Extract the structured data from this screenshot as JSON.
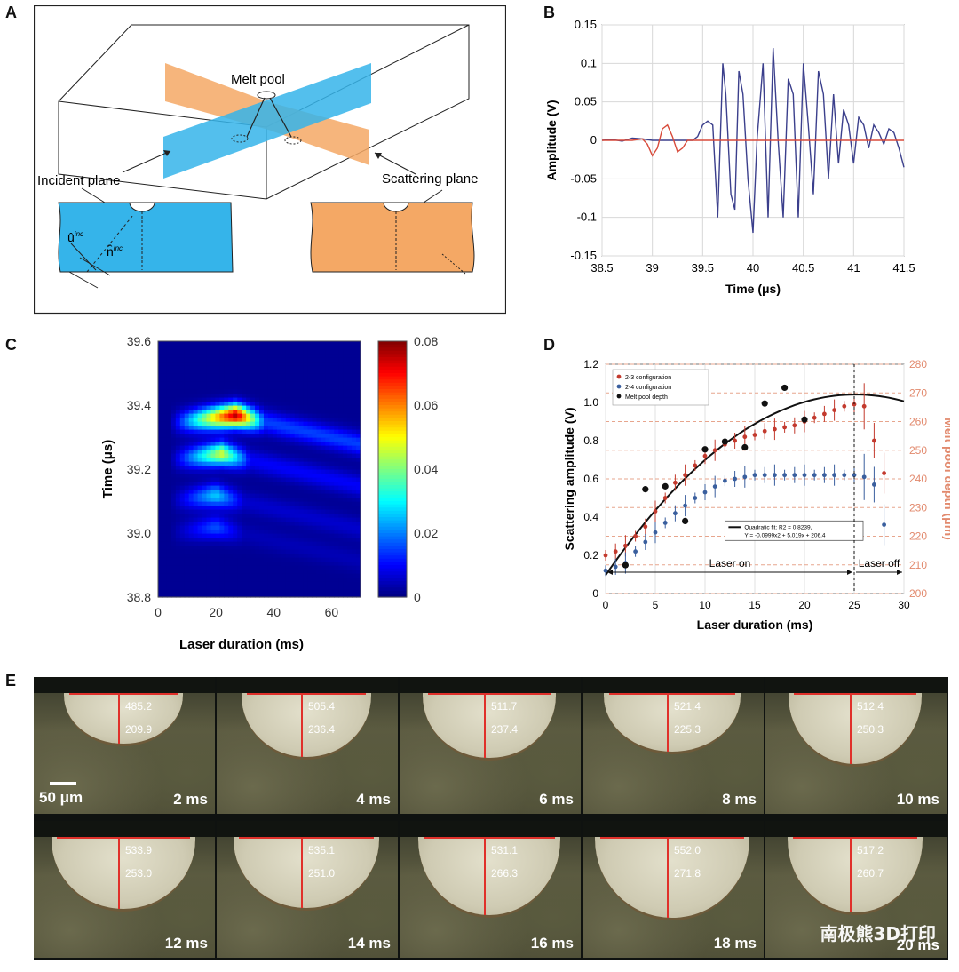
{
  "panels": {
    "a": {
      "letter": "A",
      "labels": {
        "melt_pool": "Melt pool",
        "incident_plane": "Incident plane",
        "scattering_plane": "Scattering plane",
        "u_inc": "û",
        "u_sup": "inc",
        "n_inc": "n̂",
        "n_sup": "inc"
      }
    },
    "b": {
      "letter": "B"
    },
    "c": {
      "letter": "C"
    },
    "d": {
      "letter": "D"
    },
    "e": {
      "letter": "E"
    }
  },
  "chart_data": [
    {
      "panel": "B",
      "type": "line",
      "xlabel": "Time (μs)",
      "ylabel": "Amplitude (V)",
      "xlim": [
        38.5,
        41.5
      ],
      "ylim": [
        -0.15,
        0.15
      ],
      "xticks": [
        "38.5",
        "39",
        "39.5",
        "40",
        "40.5",
        "41",
        "41.5"
      ],
      "yticks": [
        "0.15",
        "0.1",
        "0.05",
        "0",
        "-0.05",
        "-0.1",
        "-0.15"
      ],
      "grid": true,
      "series": [
        {
          "color": "#3b3f8c",
          "x": [
            38.5,
            38.6,
            38.7,
            38.8,
            38.9,
            39.0,
            39.1,
            39.2,
            39.3,
            39.4,
            39.45,
            39.5,
            39.55,
            39.6,
            39.65,
            39.7,
            39.73,
            39.78,
            39.82,
            39.86,
            39.9,
            39.95,
            40.0,
            40.04,
            40.1,
            40.15,
            40.2,
            40.25,
            40.3,
            40.35,
            40.4,
            40.45,
            40.5,
            40.55,
            40.6,
            40.65,
            40.7,
            40.75,
            40.8,
            40.85,
            40.9,
            40.95,
            41.0,
            41.05,
            41.1,
            41.15,
            41.2,
            41.25,
            41.3,
            41.35,
            41.4,
            41.45,
            41.5
          ],
          "values": [
            0,
            0.001,
            -0.001,
            0.003,
            0.002,
            0,
            0,
            0,
            0,
            0,
            0.005,
            0.02,
            0.025,
            0.02,
            -0.1,
            0.1,
            0.06,
            -0.07,
            -0.09,
            0.09,
            0.06,
            -0.05,
            -0.12,
            0.0,
            0.1,
            -0.1,
            0.12,
            0.0,
            -0.1,
            0.08,
            0.06,
            -0.1,
            0.1,
            0.02,
            -0.07,
            0.09,
            0.06,
            -0.05,
            0.06,
            -0.03,
            0.04,
            0.02,
            -0.03,
            0.03,
            0.02,
            -0.01,
            0.02,
            0.01,
            -0.005,
            0.015,
            0.01,
            -0.01,
            -0.035
          ]
        },
        {
          "color": "#d84a3a",
          "x": [
            38.5,
            38.8,
            38.9,
            38.95,
            39.0,
            39.05,
            39.1,
            39.15,
            39.2,
            39.25,
            39.3,
            39.35,
            39.4,
            39.5,
            40.0,
            41.5
          ],
          "values": [
            0,
            0,
            0.002,
            -0.005,
            -0.02,
            -0.01,
            0.015,
            0.02,
            0.005,
            -0.015,
            -0.01,
            0,
            0,
            0,
            0,
            0
          ]
        }
      ]
    },
    {
      "panel": "C",
      "type": "heatmap",
      "xlabel": "Laser duration (ms)",
      "ylabel": "Time (μs)",
      "xlim": [
        0,
        70
      ],
      "ylim": [
        38.8,
        39.6
      ],
      "xticks": [
        "0",
        "20",
        "40",
        "60"
      ],
      "yticks": [
        "39.6",
        "39.4",
        "39.2",
        "39.0",
        "38.8"
      ],
      "colorbar": {
        "min": 0,
        "max": 0.08,
        "ticks": [
          "0.08",
          "0.06",
          "0.04",
          "0.02",
          "0"
        ]
      },
      "bands": [
        {
          "center_us": 39.37,
          "peak_amplitude": 0.075,
          "peak_ms": 27
        },
        {
          "center_us": 39.25,
          "peak_amplitude": 0.045,
          "peak_ms": 22
        },
        {
          "center_us": 39.12,
          "peak_amplitude": 0.025,
          "peak_ms": 20
        },
        {
          "center_us": 39.02,
          "peak_amplitude": 0.015,
          "peak_ms": 20
        }
      ]
    },
    {
      "panel": "D",
      "type": "scatter",
      "xlabel": "Laser duration (ms)",
      "ylabel": "Scattering amplitude (V)",
      "y2label": "Melt pool depth (μm)",
      "xlim": [
        0,
        30
      ],
      "ylim": [
        0,
        1.2
      ],
      "y2lim": [
        200,
        280
      ],
      "xticks": [
        "0",
        "5",
        "10",
        "15",
        "20",
        "25",
        "30"
      ],
      "yticks": [
        "1.2",
        "1.0",
        "0.8",
        "0.6",
        "0.4",
        "0.2",
        "0"
      ],
      "y2ticks": [
        "280",
        "270",
        "260",
        "250",
        "240",
        "230",
        "220",
        "210",
        "200"
      ],
      "legend": [
        "2-3 configuration",
        "2-4 configuration",
        "Melt pool depth"
      ],
      "fit_text": [
        "Quadratic fit: R2 = 0.8239,",
        "Y = -0.0999x2 + 5.019x + 206.4"
      ],
      "region_labels": [
        "Laser on",
        "Laser off"
      ],
      "series": [
        {
          "name": "2-3 configuration",
          "color": "#c33a2e",
          "x": [
            0,
            1,
            2,
            3,
            4,
            5,
            6,
            7,
            8,
            9,
            10,
            11,
            12,
            13,
            14,
            15,
            16,
            17,
            18,
            19,
            20,
            21,
            22,
            23,
            24,
            25,
            26,
            27,
            28
          ],
          "values": [
            0.2,
            0.22,
            0.25,
            0.3,
            0.35,
            0.43,
            0.5,
            0.58,
            0.62,
            0.67,
            0.72,
            0.75,
            0.78,
            0.8,
            0.82,
            0.83,
            0.85,
            0.86,
            0.87,
            0.88,
            0.9,
            0.92,
            0.94,
            0.96,
            0.98,
            0.99,
            0.98,
            0.8,
            0.63
          ]
        },
        {
          "name": "2-4 configuration",
          "color": "#3a5f9e",
          "x": [
            0,
            1,
            2,
            3,
            4,
            5,
            6,
            7,
            8,
            9,
            10,
            11,
            12,
            13,
            14,
            15,
            16,
            17,
            18,
            19,
            20,
            21,
            22,
            23,
            24,
            25,
            26,
            27,
            28
          ],
          "values": [
            0.12,
            0.14,
            0.16,
            0.22,
            0.27,
            0.32,
            0.37,
            0.42,
            0.46,
            0.5,
            0.53,
            0.56,
            0.59,
            0.6,
            0.61,
            0.62,
            0.62,
            0.62,
            0.62,
            0.62,
            0.62,
            0.62,
            0.62,
            0.62,
            0.62,
            0.62,
            0.61,
            0.57,
            0.36
          ]
        },
        {
          "name": "Melt pool depth",
          "color": "#111111",
          "axis": "y2",
          "x": [
            2,
            4,
            6,
            8,
            10,
            12,
            14,
            16,
            18,
            20
          ],
          "values": [
            209.9,
            236.4,
            237.4,
            225.3,
            250.3,
            253.0,
            251.0,
            266.3,
            271.8,
            260.7
          ]
        }
      ]
    }
  ],
  "micro": {
    "scale_label": "50 μm",
    "watermark": "南极熊3D打印",
    "tiles": [
      {
        "time": "2 ms",
        "width_um": "485.2",
        "depth_um": "209.9"
      },
      {
        "time": "4 ms",
        "width_um": "505.4",
        "depth_um": "236.4"
      },
      {
        "time": "6 ms",
        "width_um": "511.7",
        "depth_um": "237.4"
      },
      {
        "time": "8 ms",
        "width_um": "521.4",
        "depth_um": "225.3"
      },
      {
        "time": "10 ms",
        "width_um": "512.4",
        "depth_um": "250.3"
      },
      {
        "time": "12 ms",
        "width_um": "533.9",
        "depth_um": "253.0"
      },
      {
        "time": "14 ms",
        "width_um": "535.1",
        "depth_um": "251.0"
      },
      {
        "time": "16 ms",
        "width_um": "531.1",
        "depth_um": "266.3"
      },
      {
        "time": "18 ms",
        "width_um": "552.0",
        "depth_um": "271.8"
      },
      {
        "time": "20 ms",
        "width_um": "517.2",
        "depth_um": "260.7"
      }
    ]
  }
}
